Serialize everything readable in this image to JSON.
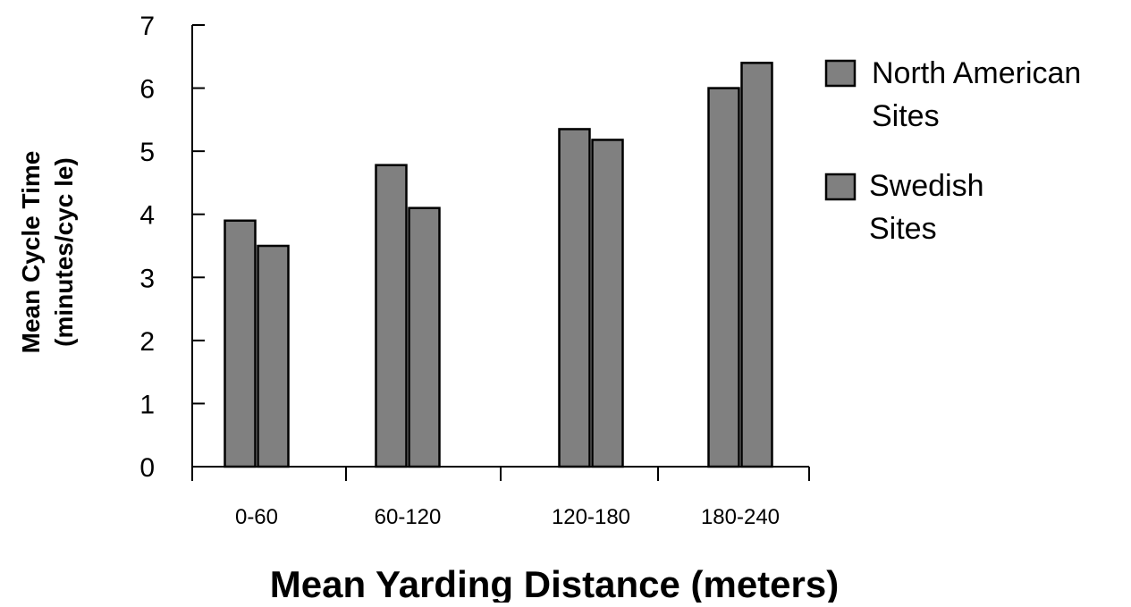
{
  "chart_data": {
    "type": "bar",
    "categories": [
      "0-60",
      "60-120",
      "120-180",
      "180-240"
    ],
    "series": [
      {
        "name": "North American Sites",
        "legend_lines": [
          "North American",
          "Sites"
        ],
        "color": "#808080",
        "values": [
          3.9,
          4.78,
          5.35,
          6.0
        ]
      },
      {
        "name": "Swedish Sites",
        "legend_lines": [
          "Swedish",
          "Sites"
        ],
        "color": "#808080",
        "values": [
          3.5,
          4.1,
          5.18,
          6.4
        ]
      }
    ],
    "title": "",
    "xlabel": "Mean Yarding Distance (meters)",
    "ylabel_lines": [
      "Mean Cycle Time",
      "(minutes/cyc le)"
    ],
    "ylim": [
      0,
      7
    ],
    "yticks": [
      0,
      1,
      2,
      3,
      4,
      5,
      6,
      7
    ],
    "grid": false,
    "legend_position": "right"
  }
}
